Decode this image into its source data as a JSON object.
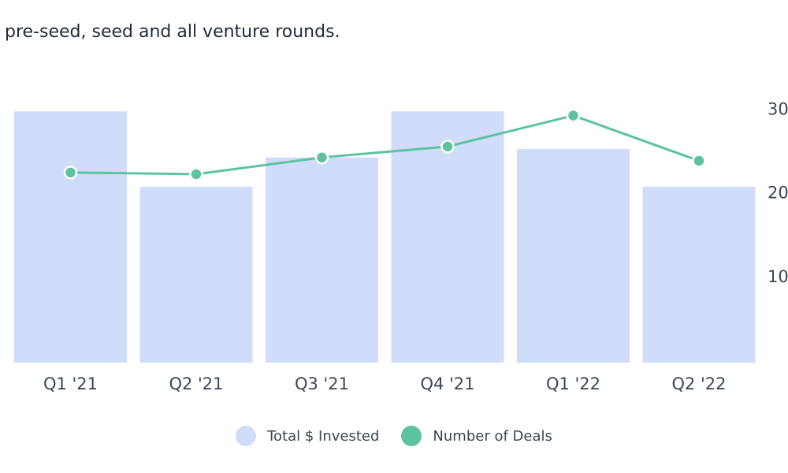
{
  "subtitle": "pre-seed, seed and all venture rounds.",
  "colors": {
    "bar": "#cfdcfa",
    "line": "#5cc2a2",
    "text": "#3b4756"
  },
  "chart_data": {
    "type": "bar",
    "categories": [
      "Q1 '21",
      "Q2 '21",
      "Q3 '21",
      "Q4 '21",
      "Q1 '22",
      "Q2 '22"
    ],
    "series": [
      {
        "name": "Total $ Invested",
        "kind": "bar",
        "values": [
          30,
          21,
          24.5,
          30,
          25.5,
          21
        ]
      },
      {
        "name": "Number of Deals",
        "kind": "line",
        "values": [
          22.7,
          22.5,
          24.5,
          25.8,
          29.5,
          24.1
        ]
      }
    ],
    "right_axis": {
      "ticks": [
        "30",
        "20",
        "10"
      ],
      "tick_values": [
        30,
        20,
        10
      ],
      "range": [
        0,
        32
      ]
    },
    "grid": false,
    "legend": "bottom-center"
  },
  "legend": [
    {
      "label": "Total $ Invested",
      "color": "#cfdcfa"
    },
    {
      "label": "Number of Deals",
      "color": "#5cc2a2"
    }
  ]
}
